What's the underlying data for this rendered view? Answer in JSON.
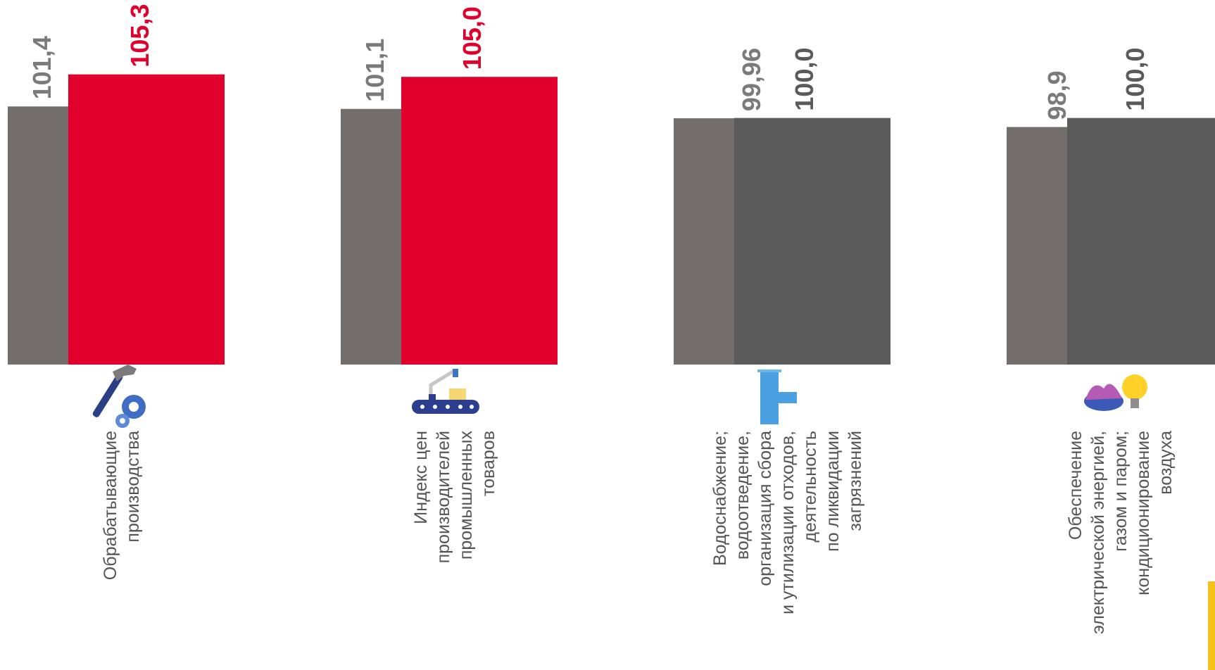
{
  "colors": {
    "previous": "#736e6c",
    "growth": "#e0002b",
    "flat": "#5a5a5a",
    "previous_label": "#7a7a7a",
    "accent": "#f5c21b"
  },
  "chart_data": {
    "type": "bar",
    "categories": [
      "Обрабатывающие производства",
      "Индекс цен производителей промышленных товаров",
      "Водоснабжение; водоотведение, организация сбора и утилизации отходов, деятельность по ликвидации загрязнений",
      "Обеспечение электрической энергией, газом и паром; кондиционирование воздуха"
    ],
    "label_lines": [
      [
        "Обрабатывающие",
        "производства"
      ],
      [
        "Индекс цен",
        "производителей",
        "промышленных",
        "товаров"
      ],
      [
        "Водоснабжение;",
        "водоотведение,",
        "организация  сбора",
        "и утилизации  отходов,",
        "деятельность",
        "по ликвидации",
        "загрязнений"
      ],
      [
        "Обеспечение",
        "электрической энергией,",
        "газом и паром;",
        "кондиционирование",
        "воздуха"
      ]
    ],
    "icons": [
      "hammer-gear-icon",
      "conveyor-robot-icon",
      "water-pipe-icon",
      "gas-bulb-icon"
    ],
    "series": [
      {
        "values": [
          101.4,
          101.1,
          99.96,
          98.9
        ],
        "labels": [
          "101,4",
          "101,1",
          "99,96",
          "98,9"
        ]
      },
      {
        "values": [
          105.3,
          105.0,
          100.0,
          100.0
        ],
        "labels": [
          "105,3",
          "105,0",
          "100,0",
          "100,0"
        ]
      }
    ],
    "ylim": [
      70,
      106
    ],
    "text_orientation": "rotated 90° counter-clockwise",
    "legend": "none"
  }
}
